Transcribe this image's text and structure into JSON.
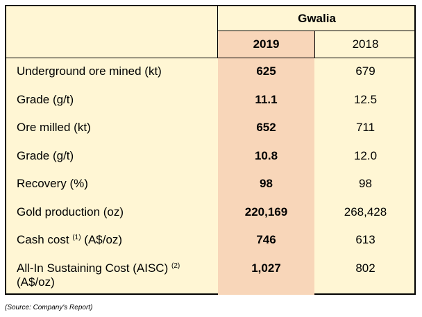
{
  "table": {
    "group_header": "Gwalia",
    "years": [
      "2019",
      "2018"
    ],
    "rows": [
      {
        "label": "Underground ore mined (kt)",
        "v2019": "625",
        "v2018": "679"
      },
      {
        "label": "Grade (g/t)",
        "v2019": "11.1",
        "v2018": "12.5"
      },
      {
        "label": "Ore milled (kt)",
        "v2019": "652",
        "v2018": "711"
      },
      {
        "label": "Grade (g/t)",
        "v2019": "10.8",
        "v2018": "12.0"
      },
      {
        "label": "Recovery (%)",
        "v2019": "98",
        "v2018": "98"
      },
      {
        "label": "Gold production (oz)",
        "v2019": "220,169",
        "v2018": "268,428"
      },
      {
        "label_main": "Cash cost",
        "label_sup": "(1)",
        "label_tail": "(A$/oz)",
        "v2019": "746",
        "v2018": "613"
      },
      {
        "label_main": "All-In Sustaining Cost (AISC)",
        "label_sup": "(2)",
        "label_tail": "(A$/oz)",
        "v2019": "1,027",
        "v2018": "802"
      }
    ]
  },
  "source_note": "(Source: Company's Report)",
  "colors": {
    "table_background": "#fff6d4",
    "highlight_column": "#f8d6b9",
    "border": "#000000"
  }
}
